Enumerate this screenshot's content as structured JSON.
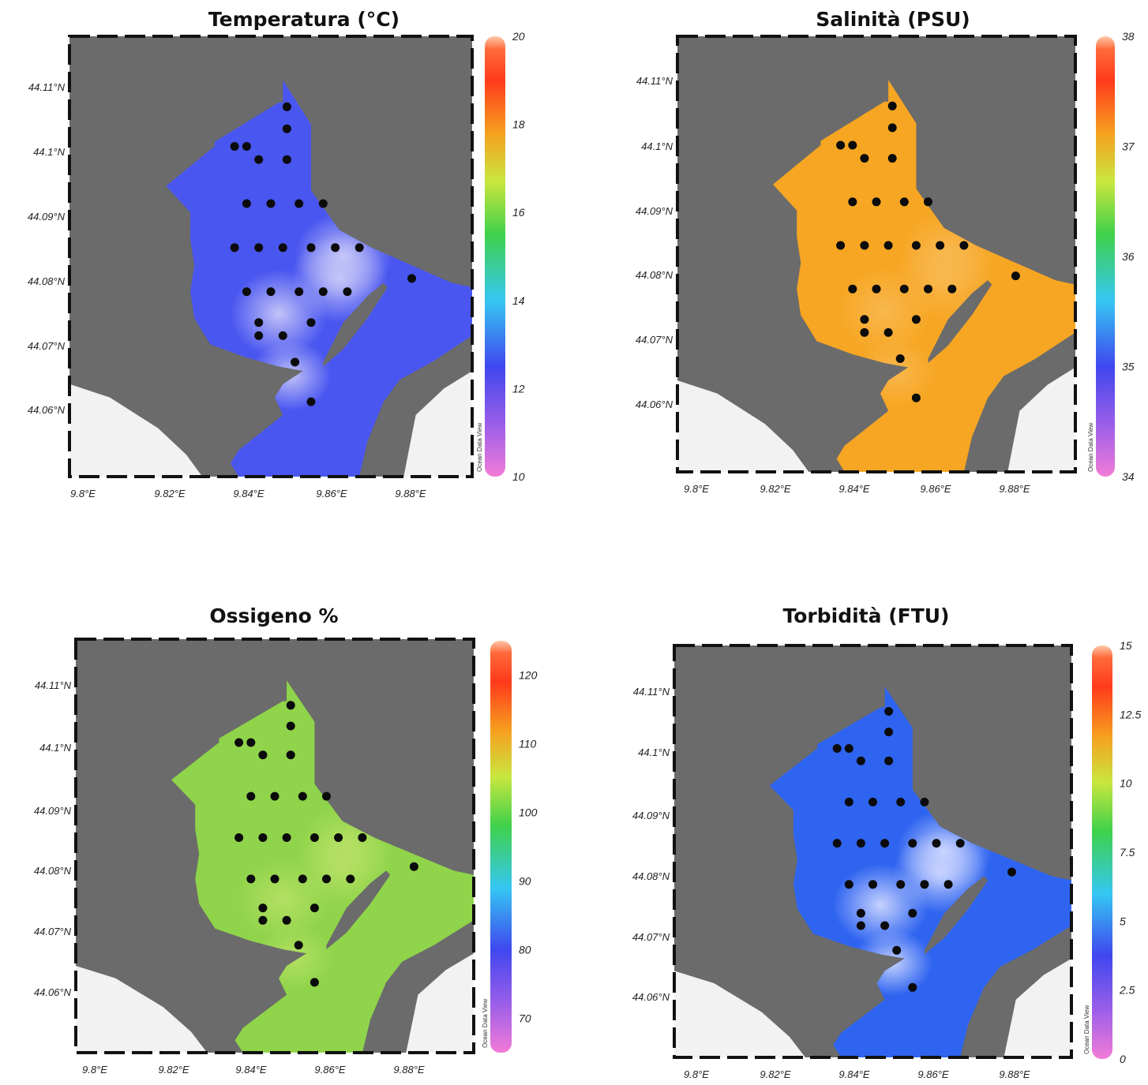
{
  "figure_text": {
    "watermark": "Ocean Data View"
  },
  "chart_data": [
    {
      "type": "map",
      "title": "Temperatura (°C)",
      "field_color": "#4a56f0",
      "field_highlight": "#c8c8f8",
      "lon_ticks": [
        "9.8°E",
        "9.82°E",
        "9.84°E",
        "9.86°E",
        "9.88°E"
      ],
      "lat_ticks": [
        "44.11°N",
        "44.1°N",
        "44.09°N",
        "44.08°N",
        "44.07°N",
        "44.06°N"
      ],
      "colorbar": {
        "ticks": [
          "20",
          "18",
          "16",
          "14",
          "12",
          "10"
        ],
        "range": [
          10,
          20
        ]
      }
    },
    {
      "type": "map",
      "title": "Salinità (PSU)",
      "field_color": "#f6a623",
      "field_highlight": "#f9b850",
      "lon_ticks": [
        "9.8°E",
        "9.82°E",
        "9.84°E",
        "9.86°E",
        "9.88°E"
      ],
      "lat_ticks": [
        "44.11°N",
        "44.1°N",
        "44.09°N",
        "44.08°N",
        "44.07°N",
        "44.06°N"
      ],
      "colorbar": {
        "ticks": [
          "38",
          "37",
          "36",
          "35",
          "34"
        ],
        "range": [
          34,
          38
        ]
      }
    },
    {
      "type": "map",
      "title": "Ossigeno %",
      "field_color": "#8fd44a",
      "field_highlight": "#b6e064",
      "lon_ticks": [
        "9.8°E",
        "9.82°E",
        "9.84°E",
        "9.86°E",
        "9.88°E"
      ],
      "lat_ticks": [
        "44.11°N",
        "44.1°N",
        "44.09°N",
        "44.08°N",
        "44.07°N",
        "44.06°N"
      ],
      "colorbar": {
        "ticks": [
          "120",
          "110",
          "100",
          "90",
          "80",
          "70"
        ],
        "range": [
          65,
          125
        ]
      }
    },
    {
      "type": "map",
      "title": "Torbidità (FTU)",
      "field_color": "#2f64f0",
      "field_highlight": "#cdd7ff",
      "lon_ticks": [
        "9.8°E",
        "9.82°E",
        "9.84°E",
        "9.86°E",
        "9.88°E"
      ],
      "lat_ticks": [
        "44.11°N",
        "44.1°N",
        "44.09°N",
        "44.08°N",
        "44.07°N",
        "44.06°N"
      ],
      "colorbar": {
        "ticks": [
          "15",
          "12.5",
          "10",
          "7.5",
          "5",
          "2.5",
          "0"
        ],
        "range": [
          0,
          15
        ]
      }
    }
  ]
}
